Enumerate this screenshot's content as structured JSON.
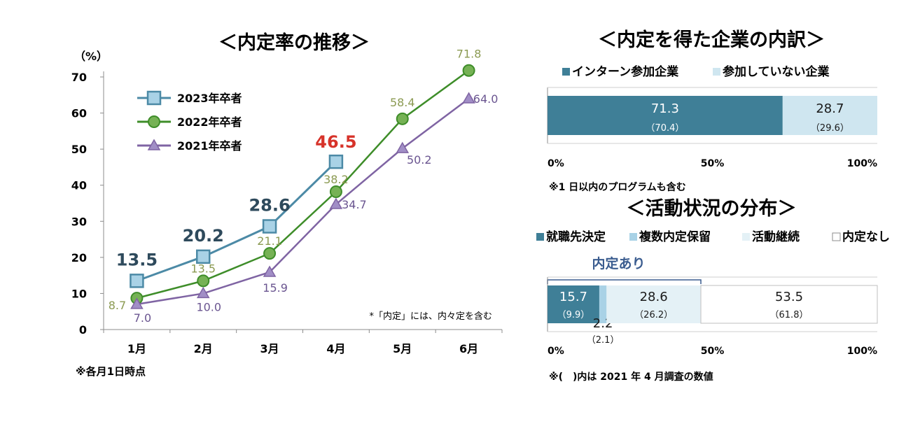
{
  "colors": {
    "s2023": "#4c8aa6",
    "s2022": "#3e8d29",
    "s2021": "#7f64a3",
    "s2023_fill": "#a9d2e6",
    "s2022_fill": "#76b255",
    "s2021_fill": "#a18ec6",
    "lbl2023": "#2e4a5c",
    "lbl2022": "#8b9a52",
    "lbl2021": "#6a5590",
    "highlight": "#d7332a",
    "intern": "#3f7f97",
    "nonintern": "#cfe6f0",
    "decided": "#3f7f97",
    "multiple": "#a9d2e6",
    "continuing": "#e4f1f6",
    "none": "#ffffff",
    "bracket": "#3a5c8f"
  },
  "chart_data": [
    {
      "type": "line",
      "title": "＜内定率の推移＞",
      "ylabel": "（%）",
      "categories": [
        "1月",
        "2月",
        "3月",
        "4月",
        "5月",
        "6月"
      ],
      "ylim": [
        0,
        70
      ],
      "yticks": [
        "0",
        "10",
        "20",
        "30",
        "40",
        "50",
        "60",
        "70"
      ],
      "legend_position": "top-left",
      "series": [
        {
          "name": "2023年卒者",
          "values": [
            13.5,
            20.2,
            28.6,
            46.5,
            null,
            null
          ],
          "labels": [
            "13.5",
            "20.2",
            "28.6",
            "46.5",
            "",
            ""
          ]
        },
        {
          "name": "2022年卒者",
          "values": [
            8.7,
            13.5,
            21.1,
            38.2,
            58.4,
            71.8
          ],
          "labels": [
            "8.7",
            "13.5",
            "21.1",
            "38.2",
            "58.4",
            "71.8"
          ]
        },
        {
          "name": "2021年卒者",
          "values": [
            7.0,
            10.0,
            15.9,
            34.7,
            50.2,
            64.0
          ],
          "labels": [
            "7.0",
            "10.0",
            "15.9",
            "34.7",
            "50.2",
            "64.0"
          ]
        }
      ],
      "annotation": "*「内定」には、内々定を含む",
      "footnote": "※各月1日時点"
    },
    {
      "type": "bar",
      "orientation": "horizontal-stacked",
      "title": "＜内定を得た企業の内訳＞",
      "series": [
        {
          "name": "インターン参加企業",
          "value": 71.3,
          "label": "71.3",
          "prev_label": "（70.4）"
        },
        {
          "name": "参加していない企業",
          "value": 28.7,
          "label": "28.7",
          "prev_label": "（29.6）"
        }
      ],
      "xticks": [
        "0%",
        "50%",
        "100%"
      ],
      "footnote": "※1 日以内のプログラムも含む"
    },
    {
      "type": "bar",
      "orientation": "horizontal-stacked",
      "title": "＜活動状況の分布＞",
      "series": [
        {
          "name": "就職先決定",
          "value": 15.7,
          "label": "15.7",
          "prev_label": "（9.9）"
        },
        {
          "name": "複数内定保留",
          "value": 2.2,
          "label": "2.2",
          "prev_label": "（2.1）"
        },
        {
          "name": "活動継続",
          "value": 28.6,
          "label": "28.6",
          "prev_label": "（26.2）"
        },
        {
          "name": "内定なし",
          "value": 53.5,
          "label": "53.5",
          "prev_label": "（61.8）"
        }
      ],
      "bracket_label": "内定あり",
      "xticks": [
        "0%",
        "50%",
        "100%"
      ],
      "footnote": "※(　)内は 2021 年 4 月調査の数値"
    }
  ]
}
